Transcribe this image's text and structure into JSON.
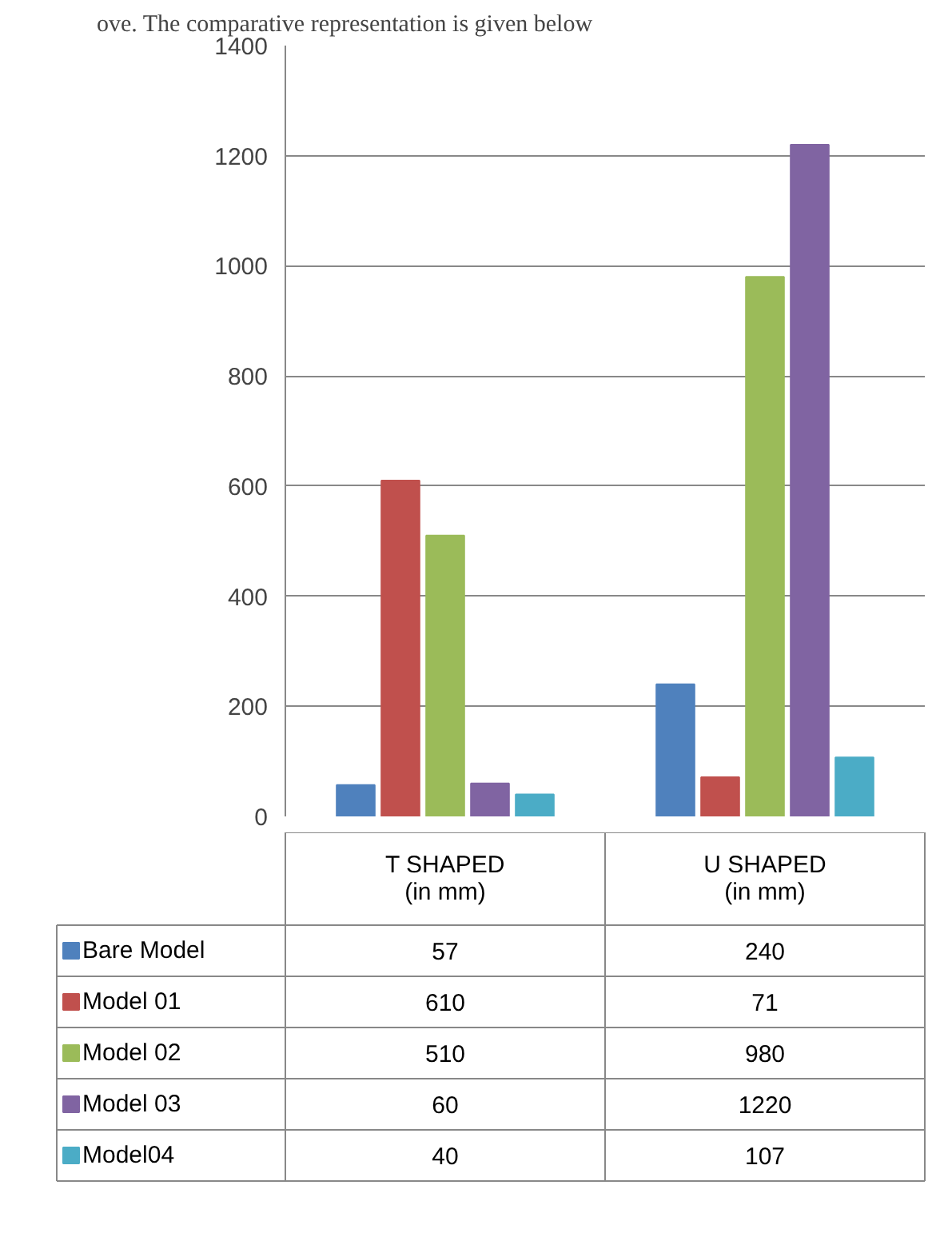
{
  "chart_data": {
    "type": "bar",
    "annotations": [
      "ove. The comparative representation is given below"
    ],
    "categories": [
      "T SHAPED\n(in mm)",
      "U SHAPED\n(in mm)"
    ],
    "series": [
      {
        "name": "Bare Model",
        "color": "#4f81bd",
        "values": [
          57,
          240
        ]
      },
      {
        "name": "Model 01",
        "color": "#c0504d",
        "values": [
          610,
          71
        ]
      },
      {
        "name": "Model 02",
        "color": "#9bbb59",
        "values": [
          510,
          980
        ]
      },
      {
        "name": "Model 03",
        "color": "#8064a2",
        "values": [
          60,
          1220
        ]
      },
      {
        "name": "Model04",
        "color": "#4bacc6",
        "values": [
          40,
          107
        ]
      }
    ],
    "ylim": [
      0,
      1400
    ],
    "yticks": [
      0,
      200,
      400,
      600,
      800,
      1000,
      1200,
      1400
    ],
    "grid": "y",
    "legend": "bottom",
    "data_labels": true
  }
}
